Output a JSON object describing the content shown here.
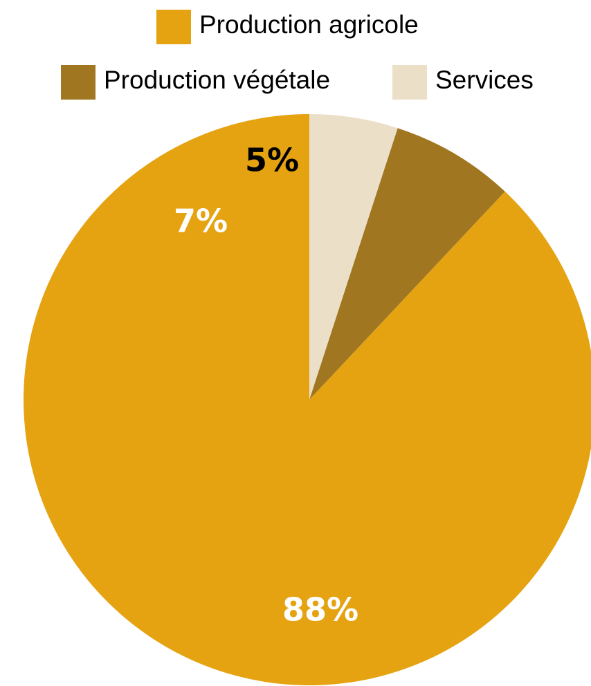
{
  "chart_data": {
    "type": "pie",
    "title": "",
    "start": "top",
    "direction": "counterclockwise",
    "legend_position": "top",
    "slices": [
      {
        "label": "Production agricole",
        "value": 88,
        "display": "88%",
        "color": "#E5A312",
        "label_color": "#FFFFFF"
      },
      {
        "label": "Production végétale",
        "value": 7,
        "display": "7%",
        "color": "#A07720",
        "label_color": "#FFFFFF"
      },
      {
        "label": "Services",
        "value": 5,
        "display": "5%",
        "color": "#ECDFC8",
        "label_color": "#000000"
      }
    ]
  }
}
